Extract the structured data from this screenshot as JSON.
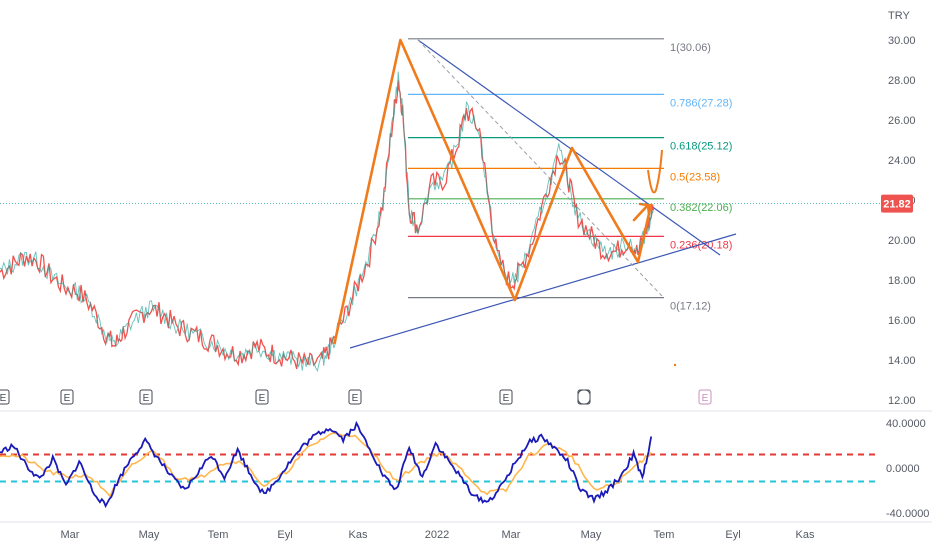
{
  "chart_data": [
    {
      "type": "line",
      "title": "",
      "currency_label": "TRY",
      "yticks": [
        "30.00",
        "28.00",
        "26.00",
        "24.00",
        "22.00",
        "20.00",
        "18.00",
        "16.00",
        "14.00",
        "12.00"
      ],
      "ylim": [
        12,
        31
      ],
      "last_price": 21.82,
      "last_price_label": "21.82",
      "colors": {
        "price": "#ef5350",
        "price_up": "#26a69a",
        "pattern": "#f07b1d",
        "trendline": "#3d57b5",
        "price_line": "#26a69a"
      },
      "price_series": [
        {
          "t": 0.0,
          "y": 18.4
        },
        {
          "t": 0.3,
          "y": 18.8
        },
        {
          "t": 0.6,
          "y": 19.2
        },
        {
          "t": 0.9,
          "y": 18.9
        },
        {
          "t": 1.2,
          "y": 18.1
        },
        {
          "t": 1.5,
          "y": 17.6
        },
        {
          "t": 1.8,
          "y": 17.4
        },
        {
          "t": 2.1,
          "y": 16.6
        },
        {
          "t": 2.4,
          "y": 15.3
        },
        {
          "t": 2.6,
          "y": 14.7
        },
        {
          "t": 2.8,
          "y": 15.4
        },
        {
          "t": 3.1,
          "y": 16.1
        },
        {
          "t": 3.4,
          "y": 16.6
        },
        {
          "t": 3.7,
          "y": 16.3
        },
        {
          "t": 4.0,
          "y": 15.7
        },
        {
          "t": 4.3,
          "y": 15.4
        },
        {
          "t": 4.6,
          "y": 15.1
        },
        {
          "t": 4.9,
          "y": 14.8
        },
        {
          "t": 5.2,
          "y": 14.4
        },
        {
          "t": 5.5,
          "y": 14.3
        },
        {
          "t": 5.8,
          "y": 14.7
        },
        {
          "t": 6.1,
          "y": 14.4
        },
        {
          "t": 6.4,
          "y": 14.2
        },
        {
          "t": 6.7,
          "y": 14.0
        },
        {
          "t": 7.0,
          "y": 13.8
        },
        {
          "t": 7.3,
          "y": 13.9
        },
        {
          "t": 7.5,
          "y": 14.6
        },
        {
          "t": 7.8,
          "y": 16.0
        },
        {
          "t": 8.1,
          "y": 17.6
        },
        {
          "t": 8.4,
          "y": 19.2
        },
        {
          "t": 8.7,
          "y": 21.8
        },
        {
          "t": 8.9,
          "y": 25.5
        },
        {
          "t": 9.05,
          "y": 28.0
        },
        {
          "t": 9.15,
          "y": 26.5
        },
        {
          "t": 9.3,
          "y": 21.5
        },
        {
          "t": 9.5,
          "y": 20.6
        },
        {
          "t": 9.8,
          "y": 22.8
        },
        {
          "t": 10.1,
          "y": 23.0
        },
        {
          "t": 10.4,
          "y": 24.8
        },
        {
          "t": 10.6,
          "y": 26.5
        },
        {
          "t": 10.9,
          "y": 25.5
        },
        {
          "t": 11.1,
          "y": 22.0
        },
        {
          "t": 11.3,
          "y": 19.2
        },
        {
          "t": 11.6,
          "y": 17.8
        },
        {
          "t": 11.8,
          "y": 18.4
        },
        {
          "t": 12.1,
          "y": 20.0
        },
        {
          "t": 12.4,
          "y": 22.3
        },
        {
          "t": 12.7,
          "y": 24.4
        },
        {
          "t": 12.9,
          "y": 23.2
        },
        {
          "t": 13.1,
          "y": 21.3
        },
        {
          "t": 13.4,
          "y": 20.3
        },
        {
          "t": 13.7,
          "y": 19.5
        },
        {
          "t": 14.0,
          "y": 19.4
        },
        {
          "t": 14.3,
          "y": 20.0
        },
        {
          "t": 14.5,
          "y": 19.3
        },
        {
          "t": 14.7,
          "y": 20.6
        },
        {
          "t": 14.85,
          "y": 21.5
        }
      ],
      "fib_levels": [
        {
          "ratio": "1",
          "value": 30.06,
          "label": "1(30.06)",
          "color": "#787b86"
        },
        {
          "ratio": "0.786",
          "value": 27.28,
          "label": "0.786(27.28)",
          "color": "#64b5f6"
        },
        {
          "ratio": "0.618",
          "value": 25.12,
          "label": "0.618(25.12)",
          "color": "#089981"
        },
        {
          "ratio": "0.5",
          "value": 23.58,
          "label": "0.5(23.58)",
          "color": "#f57c00"
        },
        {
          "ratio": "0.382",
          "value": 22.06,
          "label": "0.382(22.06)",
          "color": "#4caf50"
        },
        {
          "ratio": "0.236",
          "value": 20.18,
          "label": "0.236(20.18)",
          "color": "#f23645"
        },
        {
          "ratio": "0",
          "value": 17.12,
          "label": "0(17.12)",
          "color": "#787b86"
        }
      ],
      "pattern_points": [
        {
          "t": 7.6,
          "y": 14.8
        },
        {
          "t": 9.1,
          "y": 30.0
        },
        {
          "t": 11.7,
          "y": 17.0
        },
        {
          "t": 13.0,
          "y": 24.6
        },
        {
          "t": 14.5,
          "y": 18.9
        },
        {
          "t": 14.8,
          "y": 21.8
        }
      ],
      "events": [
        "E",
        "E",
        "E",
        "E",
        "E",
        "E",
        "E",
        "E",
        "E"
      ]
    },
    {
      "type": "line",
      "title": "",
      "yticks": [
        "40.0000",
        "0.0000",
        "-40.0000"
      ],
      "ylim": [
        -42,
        42
      ],
      "upper_level": 12,
      "lower_level": -12,
      "colors": {
        "fast": "#1a1ab8",
        "slow": "#ffb74d",
        "upper": "#e53935",
        "lower": "#26c6da"
      },
      "fast_series": [
        {
          "t": 0.0,
          "y": 14
        },
        {
          "t": 0.3,
          "y": 20
        },
        {
          "t": 0.6,
          "y": 2
        },
        {
          "t": 0.9,
          "y": -10
        },
        {
          "t": 1.2,
          "y": 8
        },
        {
          "t": 1.5,
          "y": -16
        },
        {
          "t": 1.8,
          "y": 6
        },
        {
          "t": 2.1,
          "y": -20
        },
        {
          "t": 2.4,
          "y": -34
        },
        {
          "t": 2.7,
          "y": -10
        },
        {
          "t": 3.0,
          "y": 10
        },
        {
          "t": 3.3,
          "y": 24
        },
        {
          "t": 3.6,
          "y": 8
        },
        {
          "t": 3.9,
          "y": -8
        },
        {
          "t": 4.2,
          "y": -20
        },
        {
          "t": 4.5,
          "y": -4
        },
        {
          "t": 4.8,
          "y": 12
        },
        {
          "t": 5.1,
          "y": -8
        },
        {
          "t": 5.4,
          "y": 16
        },
        {
          "t": 5.7,
          "y": -6
        },
        {
          "t": 6.0,
          "y": -24
        },
        {
          "t": 6.3,
          "y": -10
        },
        {
          "t": 6.6,
          "y": 6
        },
        {
          "t": 6.9,
          "y": 20
        },
        {
          "t": 7.2,
          "y": 30
        },
        {
          "t": 7.5,
          "y": 36
        },
        {
          "t": 7.8,
          "y": 26
        },
        {
          "t": 8.1,
          "y": 38
        },
        {
          "t": 8.4,
          "y": 18
        },
        {
          "t": 8.7,
          "y": -6
        },
        {
          "t": 9.0,
          "y": -20
        },
        {
          "t": 9.3,
          "y": 18
        },
        {
          "t": 9.6,
          "y": -8
        },
        {
          "t": 9.9,
          "y": 22
        },
        {
          "t": 10.2,
          "y": 6
        },
        {
          "t": 10.5,
          "y": -10
        },
        {
          "t": 10.8,
          "y": -26
        },
        {
          "t": 11.1,
          "y": -30
        },
        {
          "t": 11.4,
          "y": -16
        },
        {
          "t": 11.7,
          "y": 4
        },
        {
          "t": 12.0,
          "y": 22
        },
        {
          "t": 12.3,
          "y": 28
        },
        {
          "t": 12.6,
          "y": 18
        },
        {
          "t": 12.9,
          "y": 6
        },
        {
          "t": 13.2,
          "y": -20
        },
        {
          "t": 13.5,
          "y": -28
        },
        {
          "t": 13.8,
          "y": -20
        },
        {
          "t": 14.1,
          "y": -8
        },
        {
          "t": 14.4,
          "y": 12
        },
        {
          "t": 14.6,
          "y": -10
        },
        {
          "t": 14.8,
          "y": 28
        }
      ],
      "slow_series": [
        {
          "t": 0.0,
          "y": 12
        },
        {
          "t": 0.5,
          "y": 10
        },
        {
          "t": 1.0,
          "y": -2
        },
        {
          "t": 1.5,
          "y": -8
        },
        {
          "t": 2.0,
          "y": -6
        },
        {
          "t": 2.5,
          "y": -24
        },
        {
          "t": 3.0,
          "y": 2
        },
        {
          "t": 3.5,
          "y": 16
        },
        {
          "t": 4.0,
          "y": -8
        },
        {
          "t": 4.5,
          "y": -10
        },
        {
          "t": 5.0,
          "y": 4
        },
        {
          "t": 5.5,
          "y": 6
        },
        {
          "t": 6.0,
          "y": -16
        },
        {
          "t": 6.5,
          "y": -4
        },
        {
          "t": 7.0,
          "y": 18
        },
        {
          "t": 7.5,
          "y": 30
        },
        {
          "t": 8.0,
          "y": 30
        },
        {
          "t": 8.5,
          "y": 12
        },
        {
          "t": 9.0,
          "y": -12
        },
        {
          "t": 9.5,
          "y": 4
        },
        {
          "t": 10.0,
          "y": 14
        },
        {
          "t": 10.5,
          "y": -2
        },
        {
          "t": 11.0,
          "y": -22
        },
        {
          "t": 11.5,
          "y": -20
        },
        {
          "t": 12.0,
          "y": 10
        },
        {
          "t": 12.5,
          "y": 22
        },
        {
          "t": 13.0,
          "y": 10
        },
        {
          "t": 13.5,
          "y": -20
        },
        {
          "t": 14.0,
          "y": -14
        },
        {
          "t": 14.5,
          "y": 4
        },
        {
          "t": 14.8,
          "y": 14
        }
      ]
    }
  ],
  "x_axis": {
    "ticks": [
      "Mar",
      "May",
      "Tem",
      "Eyl",
      "Kas",
      "2022",
      "Mar",
      "May",
      "Tem",
      "Eyl",
      "Kas"
    ]
  }
}
